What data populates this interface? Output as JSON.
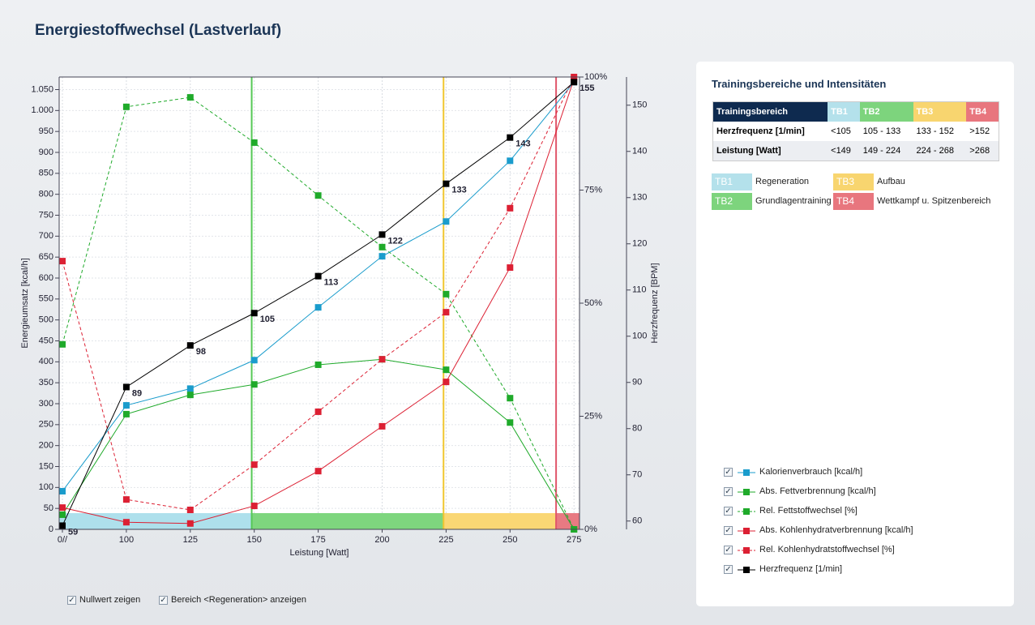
{
  "header": {
    "title": "Energiestoffwechsel (Lastverlauf)"
  },
  "chart_data": {
    "type": "line",
    "xlabel": "Leistung [Watt]",
    "ylabel": "Energieumsatz [kcal/h]",
    "y3label": "Herzfrequenz [BPM]",
    "x": [
      0,
      100,
      125,
      150,
      175,
      200,
      225,
      250,
      275
    ],
    "xlim": [
      0,
      275
    ],
    "xticks": [
      {
        "value": 0,
        "label": "0//"
      },
      100,
      125,
      150,
      175,
      200,
      225,
      250,
      275
    ],
    "ylim": [
      0,
      1080
    ],
    "yticks": [
      0,
      50,
      100,
      150,
      200,
      250,
      300,
      350,
      400,
      450,
      500,
      550,
      600,
      650,
      700,
      750,
      800,
      850,
      900,
      950,
      {
        "value": 1000,
        "label": "1.000"
      },
      {
        "value": 1050,
        "label": "1.050"
      }
    ],
    "y2lim": [
      0,
      100
    ],
    "y2ticks": [
      {
        "value": 0,
        "label": "0%"
      },
      {
        "value": 25,
        "label": "25%"
      },
      {
        "value": 50,
        "label": "50%"
      },
      {
        "value": 75,
        "label": "75%"
      },
      {
        "value": 100,
        "label": "100%"
      }
    ],
    "y3lim": [
      58.2,
      156.1
    ],
    "y3ticks": [
      60,
      70,
      80,
      90,
      100,
      110,
      120,
      130,
      140,
      150
    ],
    "grid": true,
    "zone_limits": [
      149,
      224,
      268
    ],
    "zone_colors": [
      "#aee0ec",
      "#7ed67e",
      "#fad774",
      "#e87a82"
    ],
    "zone_line_colors": [
      "#55c855",
      "#f0c630",
      "#e0566a"
    ],
    "series": [
      {
        "name": "Kalorienverbrauch [kcal/h]",
        "color": "#1a9ccc",
        "axis": "y",
        "dashed": false,
        "checked": true,
        "values": [
          91,
          296,
          336,
          404,
          530,
          652,
          735,
          880,
          1068
        ]
      },
      {
        "name": "Abs. Fettverbrennung [kcal/h]",
        "color": "#1faa2a",
        "axis": "y",
        "dashed": false,
        "checked": true,
        "values": [
          35,
          275,
          321,
          346,
          393,
          406,
          381,
          255,
          0
        ]
      },
      {
        "name": "Rel. Fettstoffwechsel [%]",
        "color": "#1faa2a",
        "axis": "y2",
        "dashed": true,
        "checked": true,
        "values": [
          40.9,
          93.4,
          95.5,
          85.5,
          73.8,
          62.4,
          52,
          29,
          0
        ]
      },
      {
        "name": "Abs. Kohlenhydratverbrennung [kcal/h]",
        "color": "#dc2033",
        "axis": "y",
        "dashed": false,
        "checked": true,
        "values": [
          52,
          17,
          14,
          56,
          139,
          246,
          352,
          625,
          1075
        ]
      },
      {
        "name": "Rel. Kohlenhydratstoffwechsel [%]",
        "color": "#dc2033",
        "axis": "y2",
        "dashed": true,
        "checked": true,
        "values": [
          59.3,
          6.6,
          4.3,
          14.3,
          26,
          37.6,
          48,
          71,
          100
        ]
      },
      {
        "name": "Herzfrequenz [1/min]",
        "color": "#000000",
        "axis": "y3",
        "dashed": false,
        "checked": true,
        "data_labels": true,
        "values": [
          59,
          89,
          98,
          105,
          113,
          122,
          133,
          143,
          155
        ]
      }
    ]
  },
  "panel": {
    "title": "Trainingsbereiche und Intensitäten",
    "table": {
      "header": [
        "Trainingsbereich",
        "TB1",
        "TB2",
        "TB3",
        "TB4"
      ],
      "rows": [
        [
          "Herzfrequenz [1/min]",
          "<105",
          "105 - 133",
          "133 - 152",
          ">152"
        ],
        [
          "Leistung [Watt]",
          "<149",
          "149 - 224",
          "224 - 268",
          ">268"
        ]
      ]
    },
    "key": [
      {
        "code": "TB1",
        "label": "Regeneration"
      },
      {
        "code": "TB2",
        "label": "Grundlagentraining"
      },
      {
        "code": "TB3",
        "label": "Aufbau"
      },
      {
        "code": "TB4",
        "label": "Wettkampf u. Spitzenbereich"
      }
    ]
  },
  "options": [
    {
      "label": "Nullwert zeigen",
      "checked": true
    },
    {
      "label": "Bereich <Regeneration> anzeigen",
      "checked": true
    }
  ]
}
